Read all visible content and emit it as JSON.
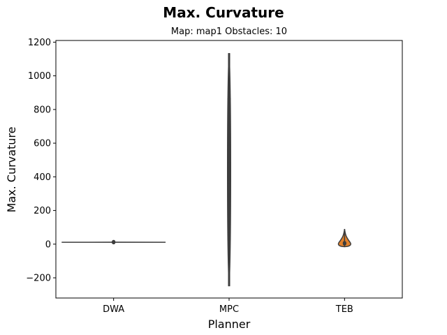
{
  "chart_data": {
    "type": "violin",
    "title": "Max. Curvature",
    "subtitle": "Map: map1 Obstacles: 10",
    "xlabel": "Planner",
    "ylabel": "Max. Curvature",
    "categories": [
      "DWA",
      "MPC",
      "TEB"
    ],
    "ylim": [
      -320,
      1210
    ],
    "yticks": [
      -200,
      0,
      200,
      400,
      600,
      800,
      1000,
      1200
    ],
    "ytick_labels": [
      "−200",
      "0",
      "200",
      "400",
      "600",
      "800",
      "1000",
      "1200"
    ],
    "grid": false,
    "series": [
      {
        "category": "DWA",
        "fill_color": "#3274a1",
        "min": 7,
        "max": 16,
        "points": [
          9,
          10,
          11,
          13,
          15
        ]
      },
      {
        "category": "MPC",
        "fill_color": "#e1812c",
        "min": -250,
        "max": 1135,
        "points": [
          862,
          478,
          372,
          140,
          125,
          90,
          75,
          60,
          45,
          30
        ]
      },
      {
        "category": "TEB",
        "fill_color": "#e1812c",
        "min": -15,
        "max": 90,
        "points": [
          2,
          5,
          8
        ]
      }
    ]
  }
}
